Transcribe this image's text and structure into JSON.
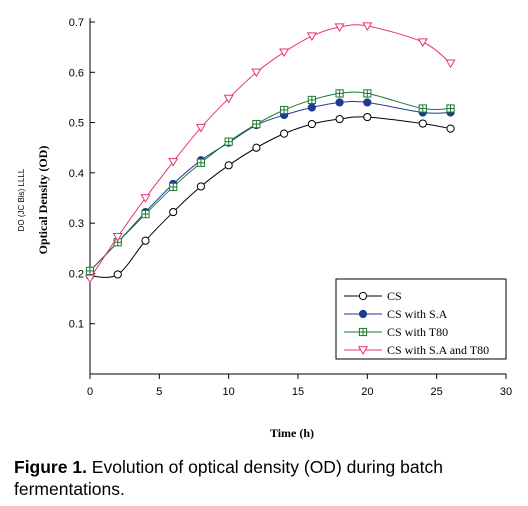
{
  "chart_data": {
    "type": "line",
    "xlabel": "Time (h)",
    "ylabel": "Optical Density (OD)",
    "ylabel_secondary": "DO (JC Bis) LLLL",
    "xlim": [
      0,
      30
    ],
    "ylim": [
      0,
      0.7
    ],
    "x_ticks": [
      "0",
      "5",
      "10",
      "15",
      "20",
      "25",
      "30"
    ],
    "y_ticks": [
      "0.1",
      "0.2",
      "0.3",
      "0.4",
      "0.5",
      "0.6",
      "0.7"
    ],
    "grid": false,
    "legend_position": "bottom-right",
    "series": [
      {
        "name": "CS",
        "color": "#000000",
        "marker": "circle-open",
        "x": [
          0,
          2,
          4,
          6,
          8,
          10,
          12,
          14,
          16,
          18,
          20,
          24,
          26
        ],
        "y": [
          0.195,
          0.198,
          0.265,
          0.322,
          0.373,
          0.415,
          0.45,
          0.478,
          0.497,
          0.507,
          0.511,
          0.498,
          0.488
        ]
      },
      {
        "name": "CS with S.A",
        "color": "#1f3a93",
        "marker": "circle-filled",
        "x": [
          0,
          2,
          4,
          6,
          8,
          10,
          12,
          14,
          16,
          18,
          20,
          24,
          26
        ],
        "y": [
          0.205,
          0.262,
          0.322,
          0.378,
          0.425,
          0.46,
          0.495,
          0.515,
          0.53,
          0.54,
          0.54,
          0.52,
          0.52
        ]
      },
      {
        "name": "CS with T80",
        "color": "#1a7a2e",
        "marker": "square-cross",
        "x": [
          0,
          2,
          4,
          6,
          8,
          10,
          12,
          14,
          16,
          18,
          20,
          24,
          26
        ],
        "y": [
          0.205,
          0.262,
          0.318,
          0.372,
          0.42,
          0.462,
          0.497,
          0.525,
          0.545,
          0.558,
          0.558,
          0.528,
          0.528
        ]
      },
      {
        "name": "CS with S.A and T80",
        "color": "#e8327a",
        "marker": "triangle-down-open",
        "x": [
          0,
          2,
          4,
          6,
          8,
          10,
          12,
          14,
          16,
          18,
          20,
          24,
          26
        ],
        "y": [
          0.19,
          0.273,
          0.35,
          0.422,
          0.49,
          0.548,
          0.6,
          0.64,
          0.672,
          0.69,
          0.692,
          0.66,
          0.618
        ]
      }
    ]
  },
  "caption": {
    "label": "Figure 1.",
    "text": " Evolution of optical density (OD) during batch fermentations."
  }
}
